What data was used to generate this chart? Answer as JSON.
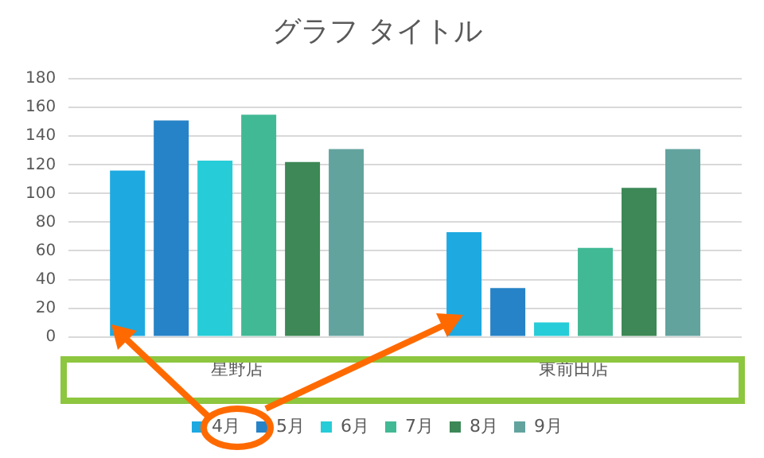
{
  "chart_data": {
    "type": "bar",
    "title": "グラフ タイトル",
    "categories": [
      "星野店",
      "東前田店"
    ],
    "series": [
      {
        "name": "4月",
        "color": "#1ea9e1",
        "values": [
          116,
          73
        ]
      },
      {
        "name": "5月",
        "color": "#2783c7",
        "values": [
          151,
          34
        ]
      },
      {
        "name": "6月",
        "color": "#26ccd7",
        "values": [
          123,
          10
        ]
      },
      {
        "name": "7月",
        "color": "#42b995",
        "values": [
          155,
          62
        ]
      },
      {
        "name": "8月",
        "color": "#3d8856",
        "values": [
          122,
          104
        ]
      },
      {
        "name": "9月",
        "color": "#62a39e",
        "values": [
          131,
          131
        ]
      }
    ],
    "ylim": [
      0,
      180
    ],
    "yticks": [
      0,
      20,
      40,
      60,
      80,
      100,
      120,
      140,
      160,
      180
    ],
    "grid": "y",
    "legend": "bottom"
  }
}
